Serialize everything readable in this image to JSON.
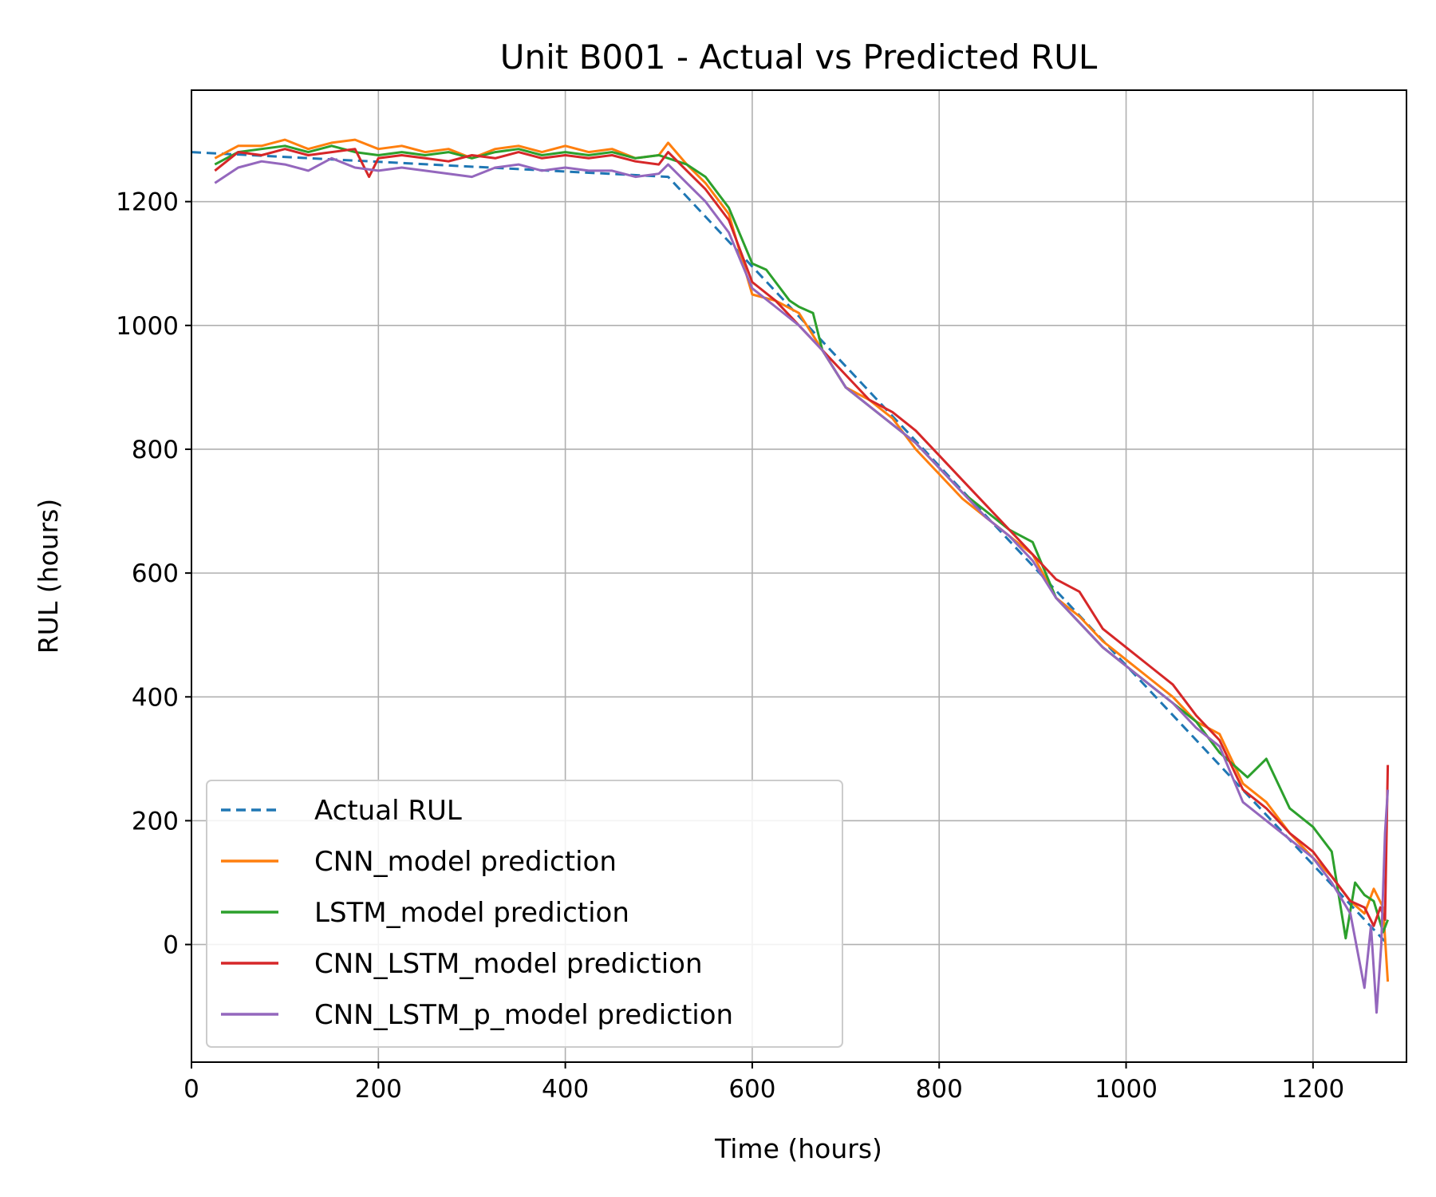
{
  "chart_data": {
    "type": "line",
    "title": "Unit B001 - Actual vs Predicted RUL",
    "xlabel": "Time (hours)",
    "ylabel": "RUL (hours)",
    "xlim": [
      0,
      1300
    ],
    "ylim": [
      -190,
      1380
    ],
    "xticks": [
      0,
      200,
      400,
      600,
      800,
      1000,
      1200
    ],
    "yticks": [
      0,
      200,
      400,
      600,
      800,
      1000,
      1200
    ],
    "grid": true,
    "legend_position": "lower-left",
    "series": [
      {
        "name": "Actual RUL",
        "color": "#1f77b4",
        "style": "dashed",
        "x": [
          0,
          510,
          1280
        ],
        "y": [
          1280,
          1240,
          0
        ]
      },
      {
        "name": "CNN_model prediction",
        "color": "#ff7f0e",
        "style": "solid",
        "x": [
          25,
          50,
          75,
          100,
          125,
          150,
          175,
          200,
          225,
          250,
          275,
          300,
          325,
          350,
          375,
          400,
          425,
          450,
          475,
          500,
          510,
          530,
          550,
          575,
          600,
          625,
          650,
          675,
          700,
          725,
          750,
          775,
          800,
          825,
          850,
          875,
          900,
          925,
          950,
          975,
          1000,
          1025,
          1050,
          1075,
          1100,
          1125,
          1150,
          1175,
          1200,
          1220,
          1240,
          1255,
          1265,
          1275,
          1280
        ],
        "y": [
          1270,
          1290,
          1290,
          1300,
          1285,
          1295,
          1300,
          1285,
          1290,
          1280,
          1285,
          1270,
          1285,
          1290,
          1280,
          1290,
          1280,
          1285,
          1270,
          1275,
          1295,
          1260,
          1230,
          1180,
          1050,
          1040,
          1020,
          960,
          900,
          880,
          850,
          800,
          760,
          720,
          690,
          660,
          630,
          560,
          530,
          490,
          460,
          430,
          400,
          360,
          340,
          260,
          230,
          180,
          140,
          110,
          70,
          50,
          90,
          60,
          -60
        ]
      },
      {
        "name": "LSTM_model prediction",
        "color": "#2ca02c",
        "style": "solid",
        "x": [
          25,
          50,
          75,
          100,
          125,
          150,
          175,
          200,
          225,
          250,
          275,
          300,
          325,
          350,
          375,
          400,
          425,
          450,
          475,
          500,
          510,
          530,
          550,
          575,
          600,
          615,
          625,
          640,
          650,
          665,
          675,
          700,
          725,
          750,
          775,
          800,
          825,
          850,
          875,
          900,
          925,
          950,
          975,
          1000,
          1025,
          1050,
          1075,
          1100,
          1115,
          1130,
          1150,
          1175,
          1200,
          1220,
          1235,
          1245,
          1255,
          1265,
          1275,
          1280
        ],
        "y": [
          1260,
          1280,
          1285,
          1290,
          1280,
          1290,
          1280,
          1275,
          1280,
          1275,
          1280,
          1270,
          1280,
          1285,
          1275,
          1280,
          1275,
          1280,
          1270,
          1275,
          1270,
          1260,
          1240,
          1190,
          1100,
          1090,
          1070,
          1040,
          1030,
          1020,
          960,
          900,
          870,
          840,
          810,
          770,
          730,
          700,
          670,
          650,
          560,
          520,
          480,
          450,
          420,
          390,
          360,
          310,
          290,
          270,
          300,
          220,
          190,
          150,
          10,
          100,
          80,
          70,
          20,
          40
        ]
      },
      {
        "name": "CNN_LSTM_model prediction",
        "color": "#d62728",
        "style": "solid",
        "x": [
          25,
          50,
          75,
          100,
          125,
          150,
          175,
          190,
          200,
          225,
          250,
          275,
          300,
          325,
          350,
          375,
          400,
          425,
          450,
          475,
          500,
          510,
          530,
          550,
          575,
          600,
          625,
          650,
          675,
          700,
          725,
          750,
          775,
          800,
          825,
          850,
          875,
          900,
          925,
          950,
          975,
          1000,
          1025,
          1050,
          1075,
          1100,
          1125,
          1150,
          1175,
          1200,
          1220,
          1240,
          1255,
          1265,
          1272,
          1277,
          1280
        ],
        "y": [
          1250,
          1280,
          1275,
          1285,
          1275,
          1280,
          1285,
          1240,
          1270,
          1275,
          1270,
          1265,
          1275,
          1270,
          1280,
          1270,
          1275,
          1270,
          1275,
          1265,
          1260,
          1280,
          1250,
          1220,
          1170,
          1070,
          1040,
          1000,
          960,
          920,
          880,
          860,
          830,
          790,
          750,
          710,
          670,
          630,
          590,
          570,
          510,
          480,
          450,
          420,
          370,
          330,
          250,
          220,
          180,
          150,
          110,
          70,
          60,
          30,
          60,
          40,
          290
        ]
      },
      {
        "name": "CNN_LSTM_p_model prediction",
        "color": "#9467bd",
        "style": "solid",
        "x": [
          25,
          50,
          75,
          100,
          125,
          150,
          175,
          200,
          225,
          250,
          275,
          300,
          325,
          350,
          375,
          400,
          425,
          450,
          475,
          500,
          510,
          530,
          550,
          575,
          600,
          625,
          650,
          675,
          700,
          725,
          750,
          775,
          800,
          825,
          850,
          875,
          900,
          925,
          950,
          975,
          1000,
          1025,
          1050,
          1075,
          1100,
          1125,
          1150,
          1175,
          1200,
          1220,
          1240,
          1255,
          1262,
          1268,
          1273,
          1277,
          1280
        ],
        "y": [
          1230,
          1255,
          1265,
          1260,
          1250,
          1270,
          1255,
          1250,
          1255,
          1250,
          1245,
          1240,
          1255,
          1260,
          1250,
          1255,
          1250,
          1250,
          1240,
          1245,
          1260,
          1230,
          1200,
          1150,
          1060,
          1030,
          1000,
          960,
          900,
          870,
          840,
          810,
          770,
          730,
          690,
          660,
          620,
          560,
          520,
          480,
          450,
          420,
          390,
          350,
          320,
          230,
          200,
          170,
          140,
          100,
          50,
          -70,
          30,
          -110,
          0,
          180,
          250
        ]
      }
    ]
  }
}
